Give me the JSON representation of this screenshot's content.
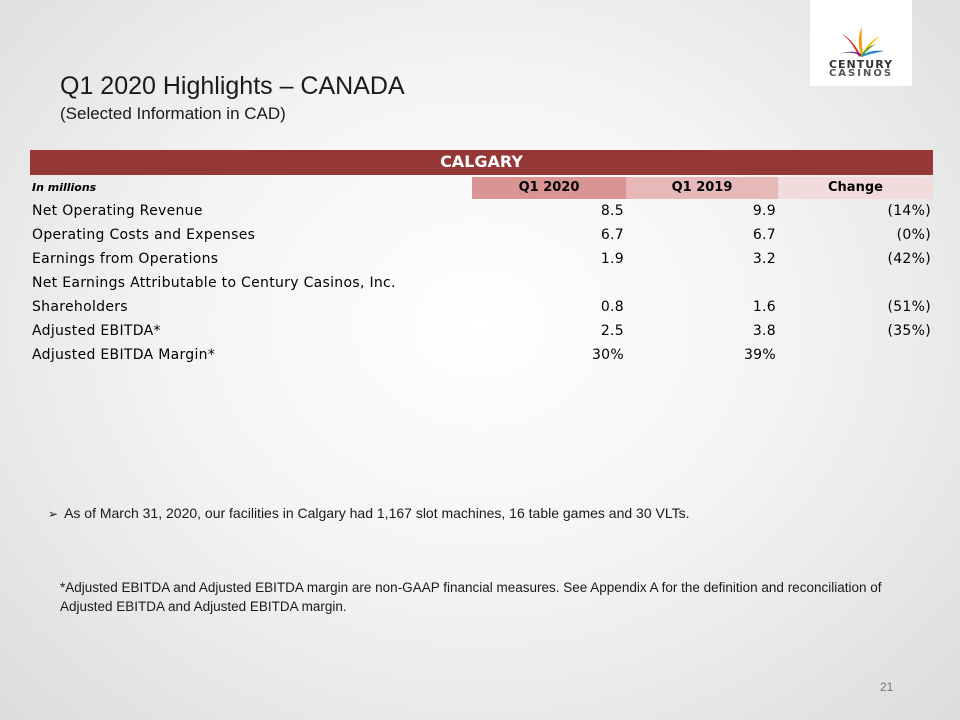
{
  "logo": {
    "line1": "CENTURY",
    "line2": "CASINOS",
    "colors": [
      "#d7261e",
      "#f39c12",
      "#f6c200",
      "#6a1b9a",
      "#1e88c9",
      "#43a047"
    ]
  },
  "header": {
    "title": "Q1 2020 Highlights – CANADA",
    "subtitle": "(Selected Information in CAD)"
  },
  "table": {
    "banner": "CALGARY",
    "unit_label": "In millions",
    "columns": [
      "Q1 2020",
      "Q1 2019",
      "Change"
    ],
    "rows": [
      {
        "label": "Net Operating Revenue",
        "q1_2020": "8.5",
        "q1_2019": "9.9",
        "change": "(14%)"
      },
      {
        "label": "Operating Costs and Expenses",
        "q1_2020": "6.7",
        "q1_2019": "6.7",
        "change": "(0%)"
      },
      {
        "label": "Earnings from Operations",
        "q1_2020": "1.9",
        "q1_2019": "3.2",
        "change": "(42%)"
      },
      {
        "label": "Net Earnings Attributable to Century Casinos, Inc.",
        "q1_2020": "",
        "q1_2019": "",
        "change": ""
      },
      {
        "label": "Shareholders",
        "q1_2020": "0.8",
        "q1_2019": "1.6",
        "change": "(51%)"
      },
      {
        "label": "Adjusted EBITDA*",
        "q1_2020": "2.5",
        "q1_2019": "3.8",
        "change": "(35%)"
      },
      {
        "label": "Adjusted EBITDA Margin*",
        "q1_2020": "30%",
        "q1_2019": "39%",
        "change": ""
      }
    ],
    "banner_color": "#953735"
  },
  "bullet": {
    "arrow": "➢",
    "text": "As of March 31, 2020, our facilities in Calgary had 1,167 slot machines, 16 table games and 30 VLTs."
  },
  "footnote": "*Adjusted EBITDA and Adjusted EBITDA margin are non-GAAP financial measures. See Appendix A for the definition and reconciliation of Adjusted EBITDA and Adjusted EBITDA margin.",
  "page_number": "21"
}
